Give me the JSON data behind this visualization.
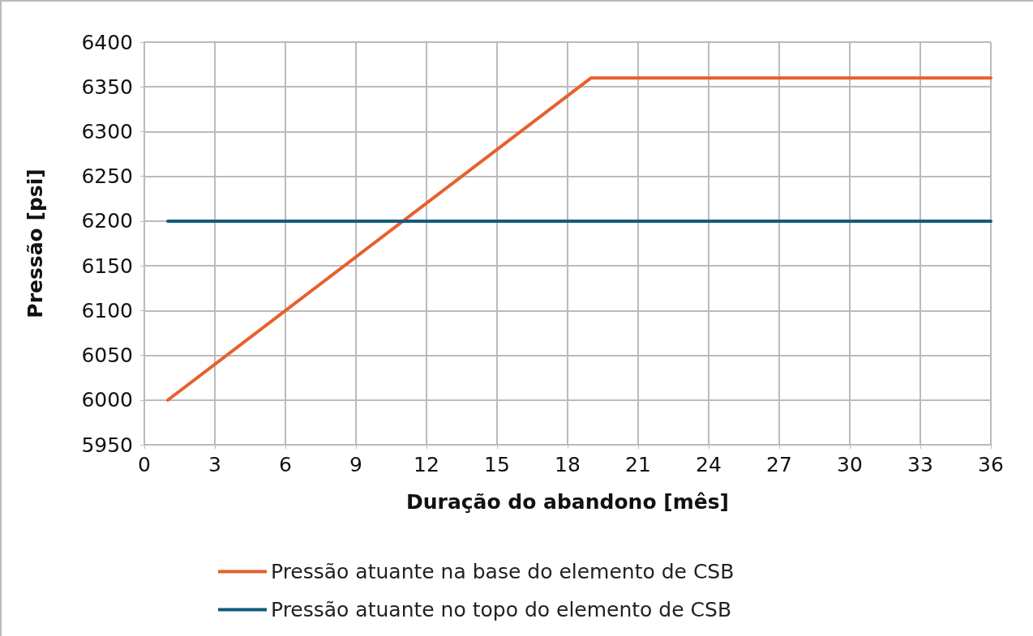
{
  "chart_data": {
    "type": "line",
    "xlabel": "Duração do abandono [mês]",
    "ylabel": "Pressão [psi]",
    "xlim": [
      0,
      36
    ],
    "xticks": [
      0,
      3,
      6,
      9,
      12,
      15,
      18,
      21,
      24,
      27,
      30,
      33,
      36
    ],
    "ylim": [
      5950,
      6400
    ],
    "yticks": [
      5950,
      6000,
      6050,
      6100,
      6150,
      6200,
      6250,
      6300,
      6350,
      6400
    ],
    "series": [
      {
        "name": "Pressão atuante na base do elemento de CSB",
        "color": "#e8602c",
        "x": [
          1,
          19,
          36
        ],
        "values": [
          6000,
          6360,
          6360
        ]
      },
      {
        "name": "Pressão atuante no topo do elemento de CSB",
        "color": "#135b7f",
        "x": [
          1,
          36
        ],
        "values": [
          6200,
          6200
        ]
      }
    ],
    "grid": true,
    "legend": "bottom",
    "marker": "none",
    "line_style": "solid"
  }
}
